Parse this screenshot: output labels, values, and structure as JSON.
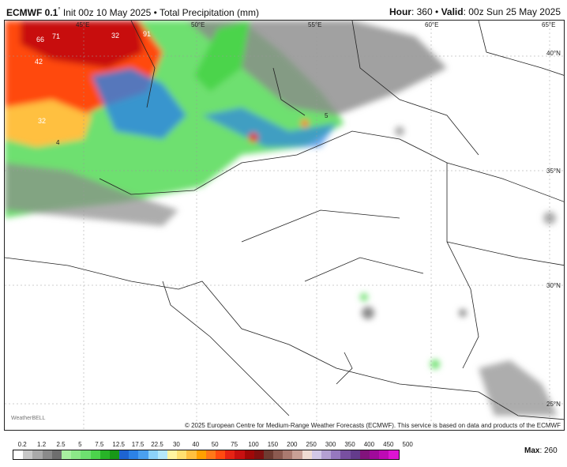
{
  "header": {
    "model": "ECMWF 0.1",
    "degree": "°",
    "init": "Init 00z 10 May 2025",
    "sep": "•",
    "product": "Total Precipitation (mm)",
    "hour_label": "Hour",
    "hour": ": 360",
    "valid_label": "Valid",
    "valid": ": 00z Sun 25 May 2025"
  },
  "map": {
    "lon_labels": [
      "45°E",
      "50°E",
      "55°E",
      "60°E",
      "65°E"
    ],
    "lat_labels": [
      "40°N",
      "35°N",
      "30°N",
      "25°N"
    ],
    "point_values": [
      "66",
      "71",
      "32",
      "91",
      "42",
      "32",
      "4",
      "5"
    ],
    "logo": "WeatherBELL"
  },
  "credit": "© 2025 European Centre for Medium-Range Weather Forecasts (ECMWF). This service is based on data and products of the ECMWF",
  "colorbar": {
    "labels": [
      "0.2",
      "1.2",
      "2.5",
      "5",
      "7.5",
      "12.5",
      "17.5",
      "22.5",
      "30",
      "40",
      "50",
      "75",
      "100",
      "150",
      "200",
      "250",
      "300",
      "350",
      "400",
      "450",
      "500"
    ],
    "colors": [
      "#ffffff",
      "#c8c8c8",
      "#a9a9a9",
      "#8a8a8a",
      "#6e6e6e",
      "#a8f0a0",
      "#8ce888",
      "#6ee070",
      "#4cd44c",
      "#28b428",
      "#189818",
      "#1e64d2",
      "#2c82e6",
      "#4aa0f0",
      "#8cd2fa",
      "#b4e8fa",
      "#fff5a0",
      "#ffe070",
      "#ffc040",
      "#ffa000",
      "#ff7818",
      "#ff4a10",
      "#e62314",
      "#c81010",
      "#a00808",
      "#801010",
      "#6e3c32",
      "#8c5a50",
      "#aa7a70",
      "#c8a096",
      "#f0dcd2",
      "#d2c8e6",
      "#b4a0d2",
      "#9678be",
      "#7850a0",
      "#643c8c",
      "#82147c",
      "#a00a9a",
      "#be0ab4",
      "#dc14d2"
    ],
    "max_label": "Max",
    "max_value": ": 260"
  }
}
